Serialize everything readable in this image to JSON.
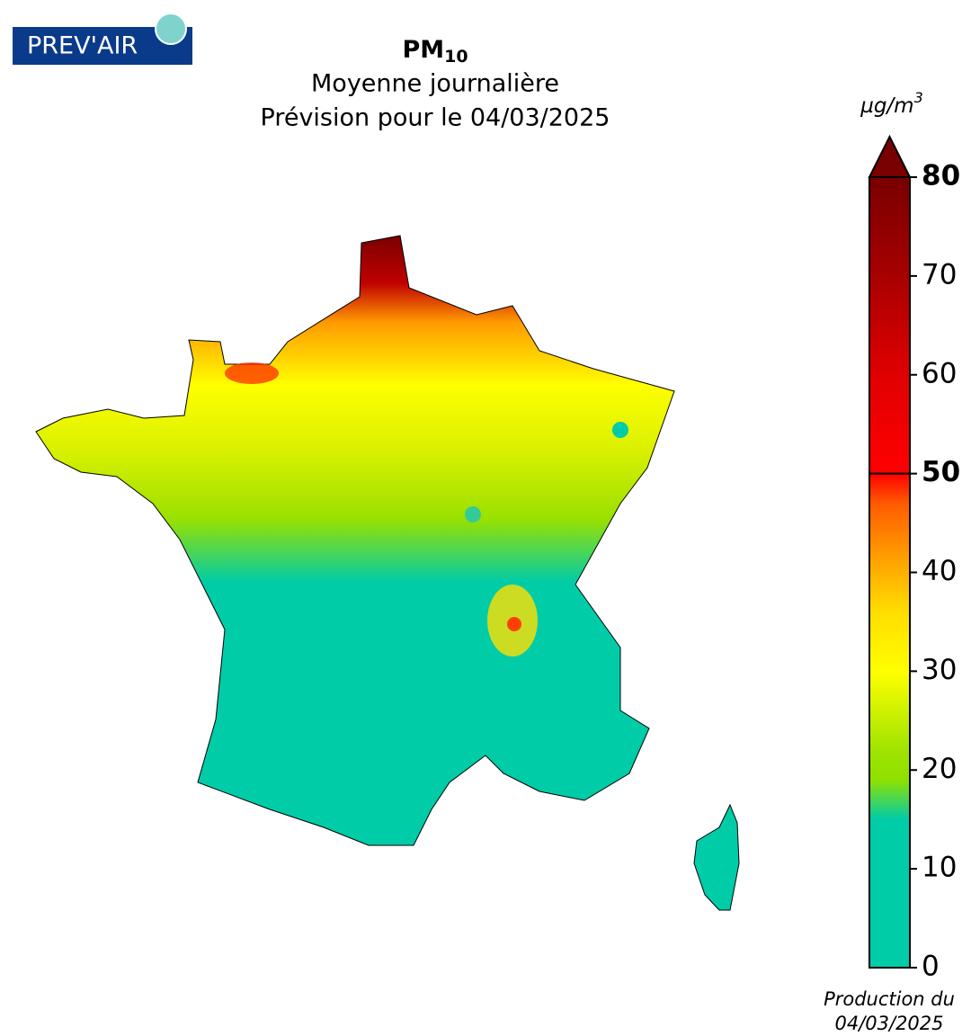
{
  "logo": "PREV'AIR",
  "title": {
    "main": "PM",
    "sub": "10",
    "line2": "Moyenne journalière",
    "line3": "Prévision pour le 04/03/2025"
  },
  "colorbar": {
    "unit": {
      "base": "µg/m",
      "sup": "3"
    },
    "lim": [
      0,
      80
    ],
    "ticks": [
      0,
      10,
      20,
      30,
      40,
      50,
      60,
      70,
      80
    ],
    "bold_ticks": [
      50,
      80
    ],
    "stops": [
      {
        "value": 0,
        "color": "#00cca8"
      },
      {
        "value": 15,
        "color": "#00cca8"
      },
      {
        "value": 19,
        "color": "#8fe000"
      },
      {
        "value": 22,
        "color": "#a0e400"
      },
      {
        "value": 30,
        "color": "#ffff00"
      },
      {
        "value": 36,
        "color": "#ffdd00"
      },
      {
        "value": 41,
        "color": "#ffa500"
      },
      {
        "value": 47,
        "color": "#ff5a00"
      },
      {
        "value": 50,
        "color": "#ff0000"
      },
      {
        "value": 60,
        "color": "#e00000"
      },
      {
        "value": 70,
        "color": "#a80000"
      },
      {
        "value": 80,
        "color": "#780000"
      }
    ],
    "extend_color": "#780000"
  },
  "footer": {
    "line1": "Production du",
    "line2": "04/03/2025"
  }
}
